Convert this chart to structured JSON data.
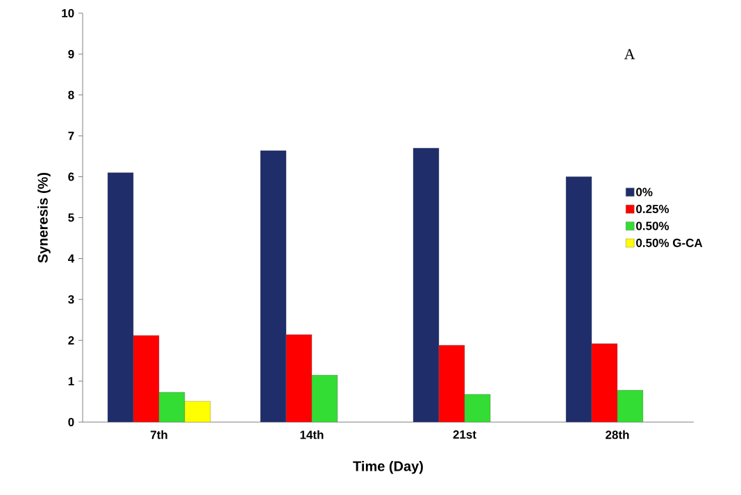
{
  "chart_data": {
    "type": "bar",
    "xlabel": "Time (Day)",
    "ylabel": "Syneresis  (%)",
    "categories": [
      "7th",
      "14th",
      "21st",
      "28th"
    ],
    "series": [
      {
        "name": "0%",
        "color": "#1f2d6b",
        "values": [
          6.1,
          6.64,
          6.7,
          6.0
        ]
      },
      {
        "name": "0.25%",
        "color": "#ff0000",
        "values": [
          2.12,
          2.14,
          1.88,
          1.92
        ]
      },
      {
        "name": "0.50%",
        "color": "#33dd33",
        "values": [
          0.73,
          1.15,
          0.68,
          0.78
        ]
      },
      {
        "name": "0.50% G-CA",
        "color": "#ffff00",
        "values": [
          0.51,
          null,
          null,
          null
        ]
      }
    ],
    "ylim": [
      0,
      10
    ],
    "yticks": [
      0,
      1,
      2,
      3,
      4,
      5,
      6,
      7,
      8,
      9,
      10
    ],
    "legend": "right",
    "annotations": [
      "A"
    ]
  }
}
